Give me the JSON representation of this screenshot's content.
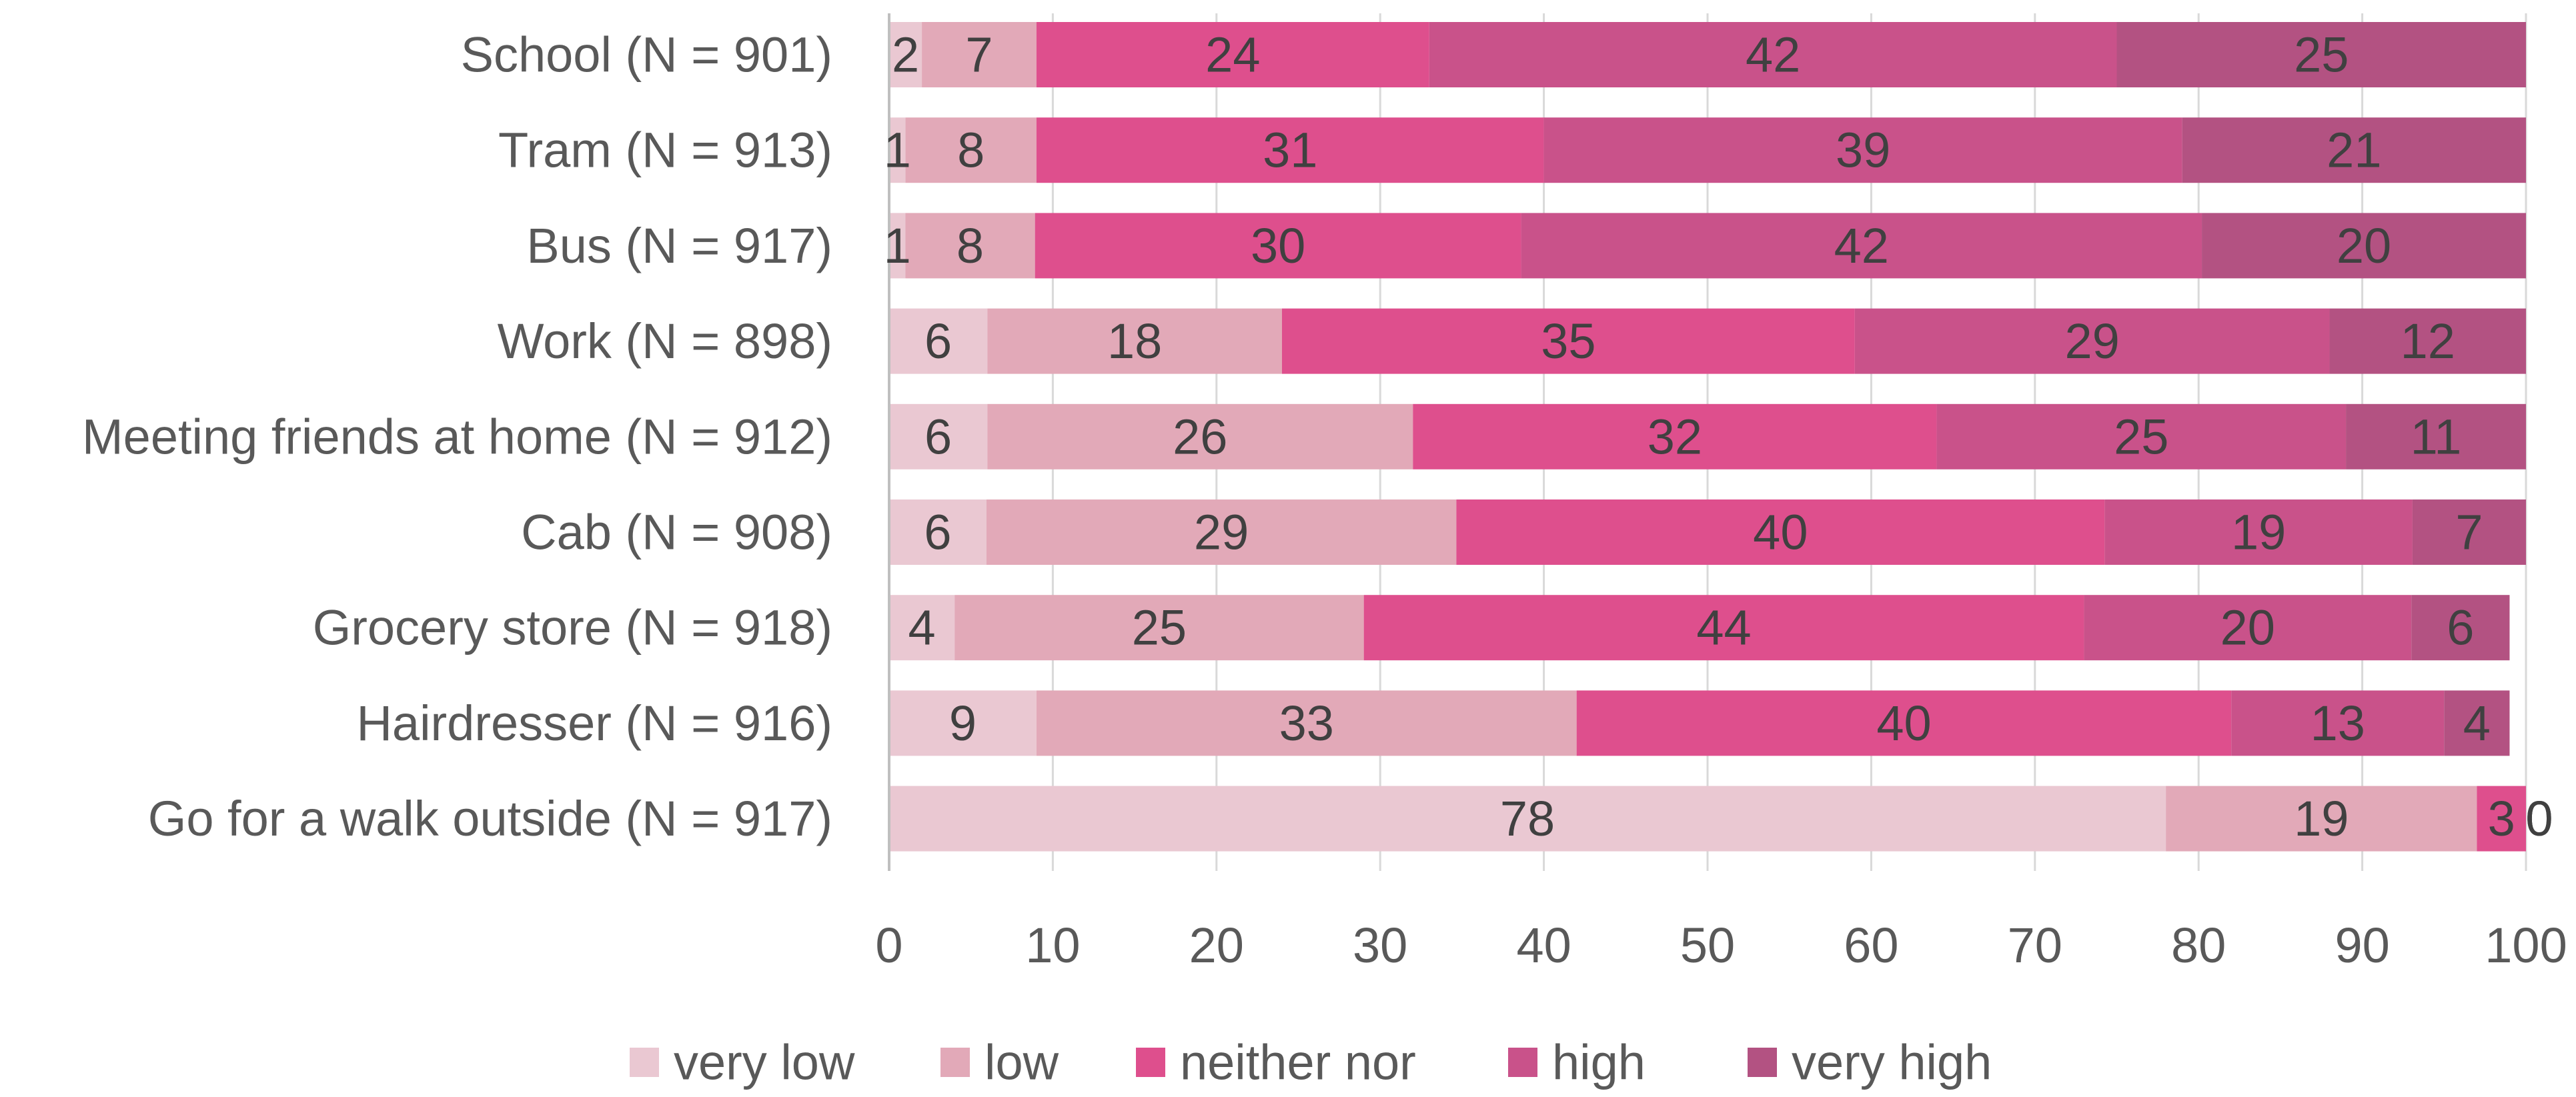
{
  "chart_data": {
    "type": "bar",
    "orientation": "horizontal",
    "stacked": true,
    "title": "",
    "xlabel": "",
    "ylabel": "",
    "xlim": [
      0,
      100
    ],
    "x_ticks": [
      0,
      10,
      20,
      30,
      40,
      50,
      60,
      70,
      80,
      90,
      100
    ],
    "grid": true,
    "legend_position": "bottom",
    "categories": [
      "School (N = 901)",
      "Tram  (N = 913)",
      "Bus (N = 917)",
      "Work (N = 898)",
      "Meeting friends at home (N = 912)",
      "Cab (N = 908)",
      "Grocery store (N = 918)",
      "Hairdresser (N = 916)",
      "Go for a walk outside (N = 917)"
    ],
    "series": [
      {
        "name": "very low",
        "color": "#eac8d2",
        "values": [
          2,
          1,
          1,
          6,
          6,
          6,
          4,
          9,
          78
        ]
      },
      {
        "name": "low",
        "color": "#e2a9b8",
        "values": [
          7,
          8,
          8,
          18,
          26,
          29,
          25,
          33,
          19
        ]
      },
      {
        "name": "neither nor",
        "color": "#de4f8d",
        "values": [
          24,
          31,
          30,
          35,
          32,
          40,
          44,
          40,
          3
        ]
      },
      {
        "name": "high",
        "color": "#c9528a",
        "values": [
          42,
          39,
          42,
          29,
          25,
          19,
          20,
          13,
          0
        ]
      },
      {
        "name": "very high",
        "color": "#b35282",
        "values": [
          25,
          21,
          20,
          12,
          11,
          7,
          6,
          4,
          0
        ]
      }
    ]
  }
}
